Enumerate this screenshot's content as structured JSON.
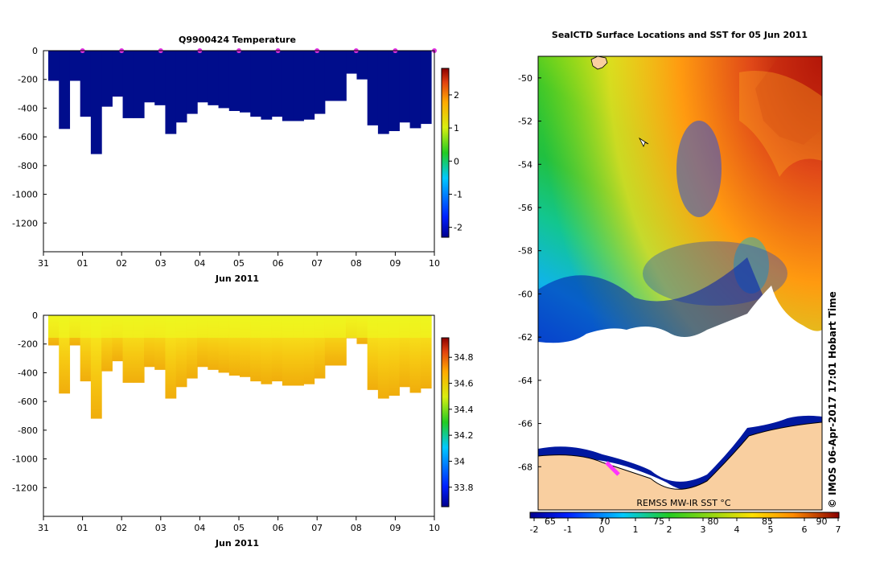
{
  "chart_data": [
    {
      "type": "heatmap",
      "title": "Q9900424  Temperature",
      "xlabel": "Jun 2011",
      "x_tick_labels": [
        "31",
        "01",
        "02",
        "03",
        "04",
        "05",
        "06",
        "07",
        "08",
        "09",
        "10"
      ],
      "y_tick_labels": [
        "0",
        "-200",
        "-400",
        "-600",
        "-800",
        "-1000",
        "-1200"
      ],
      "ylim": [
        -1400,
        0
      ],
      "colorbar_ticks": [
        "2",
        "1",
        "0",
        "-1",
        "-2"
      ],
      "colorbar_range": [
        -2.3,
        2.8
      ],
      "profile_depths": [
        -210,
        -545,
        -210,
        -460,
        -720,
        -390,
        -320,
        -470,
        -470,
        -360,
        -380,
        -580,
        -500,
        -440,
        -360,
        -380,
        -400,
        -420,
        -430,
        -460,
        -480,
        -460,
        -490,
        -490,
        -480,
        -440,
        -350,
        -350,
        -160,
        -200,
        -520,
        -580,
        -560,
        -500,
        -540,
        -510
      ],
      "surface_markers": [
        "01",
        "02",
        "03",
        "04",
        "05",
        "06",
        "07",
        "08",
        "09",
        "10"
      ],
      "colors": {
        "low": "#000d8c",
        "high": "#8b0a00"
      }
    },
    {
      "type": "heatmap",
      "title": "",
      "xlabel": "Jun 2011",
      "x_tick_labels": [
        "31",
        "01",
        "02",
        "03",
        "04",
        "05",
        "06",
        "07",
        "08",
        "09",
        "10"
      ],
      "y_tick_labels": [
        "0",
        "-200",
        "-400",
        "-600",
        "-800",
        "-1000",
        "-1200"
      ],
      "ylim": [
        -1400,
        0
      ],
      "colorbar_ticks": [
        "34.8",
        "34.6",
        "34.4",
        "34.2",
        "34",
        "33.8"
      ],
      "colorbar_range": [
        33.65,
        34.95
      ],
      "profile_depths": [
        -210,
        -545,
        -210,
        -460,
        -720,
        -390,
        -320,
        -470,
        -470,
        -360,
        -380,
        -580,
        -500,
        -440,
        -360,
        -380,
        -400,
        -420,
        -430,
        -460,
        -480,
        -460,
        -490,
        -490,
        -480,
        -440,
        -350,
        -350,
        -160,
        -200,
        -520,
        -580,
        -560,
        -500,
        -540,
        -510
      ],
      "colors": {
        "surface": "#eef61e",
        "deep": "#f2b40a"
      }
    },
    {
      "type": "heatmap",
      "title": "SealCTD Surface Locations and SST for 05 Jun 2011",
      "y_tick_labels": [
        "-50",
        "-52",
        "-54",
        "-56",
        "-58",
        "-60",
        "-62",
        "-64",
        "-66",
        "-68"
      ],
      "ylim": [
        -70,
        -49
      ],
      "colorbar_ticks": [
        "-2",
        "-1",
        "0",
        "1",
        "2",
        "3",
        "4",
        "5",
        "6",
        "7"
      ],
      "colorbar_overlay_labels": [
        "65",
        "70",
        "75",
        "80",
        "85",
        "90"
      ],
      "colorbar_range": [
        -2,
        7
      ],
      "source_label": "REMSS MW-IR SST °C",
      "credit": "© IMOS 06-Apr-2017 17:01 Hobart Time",
      "colors": {
        "land": "#f9cfa0",
        "sea_ice": "#ffffff",
        "track": "#ff33ff"
      }
    }
  ]
}
